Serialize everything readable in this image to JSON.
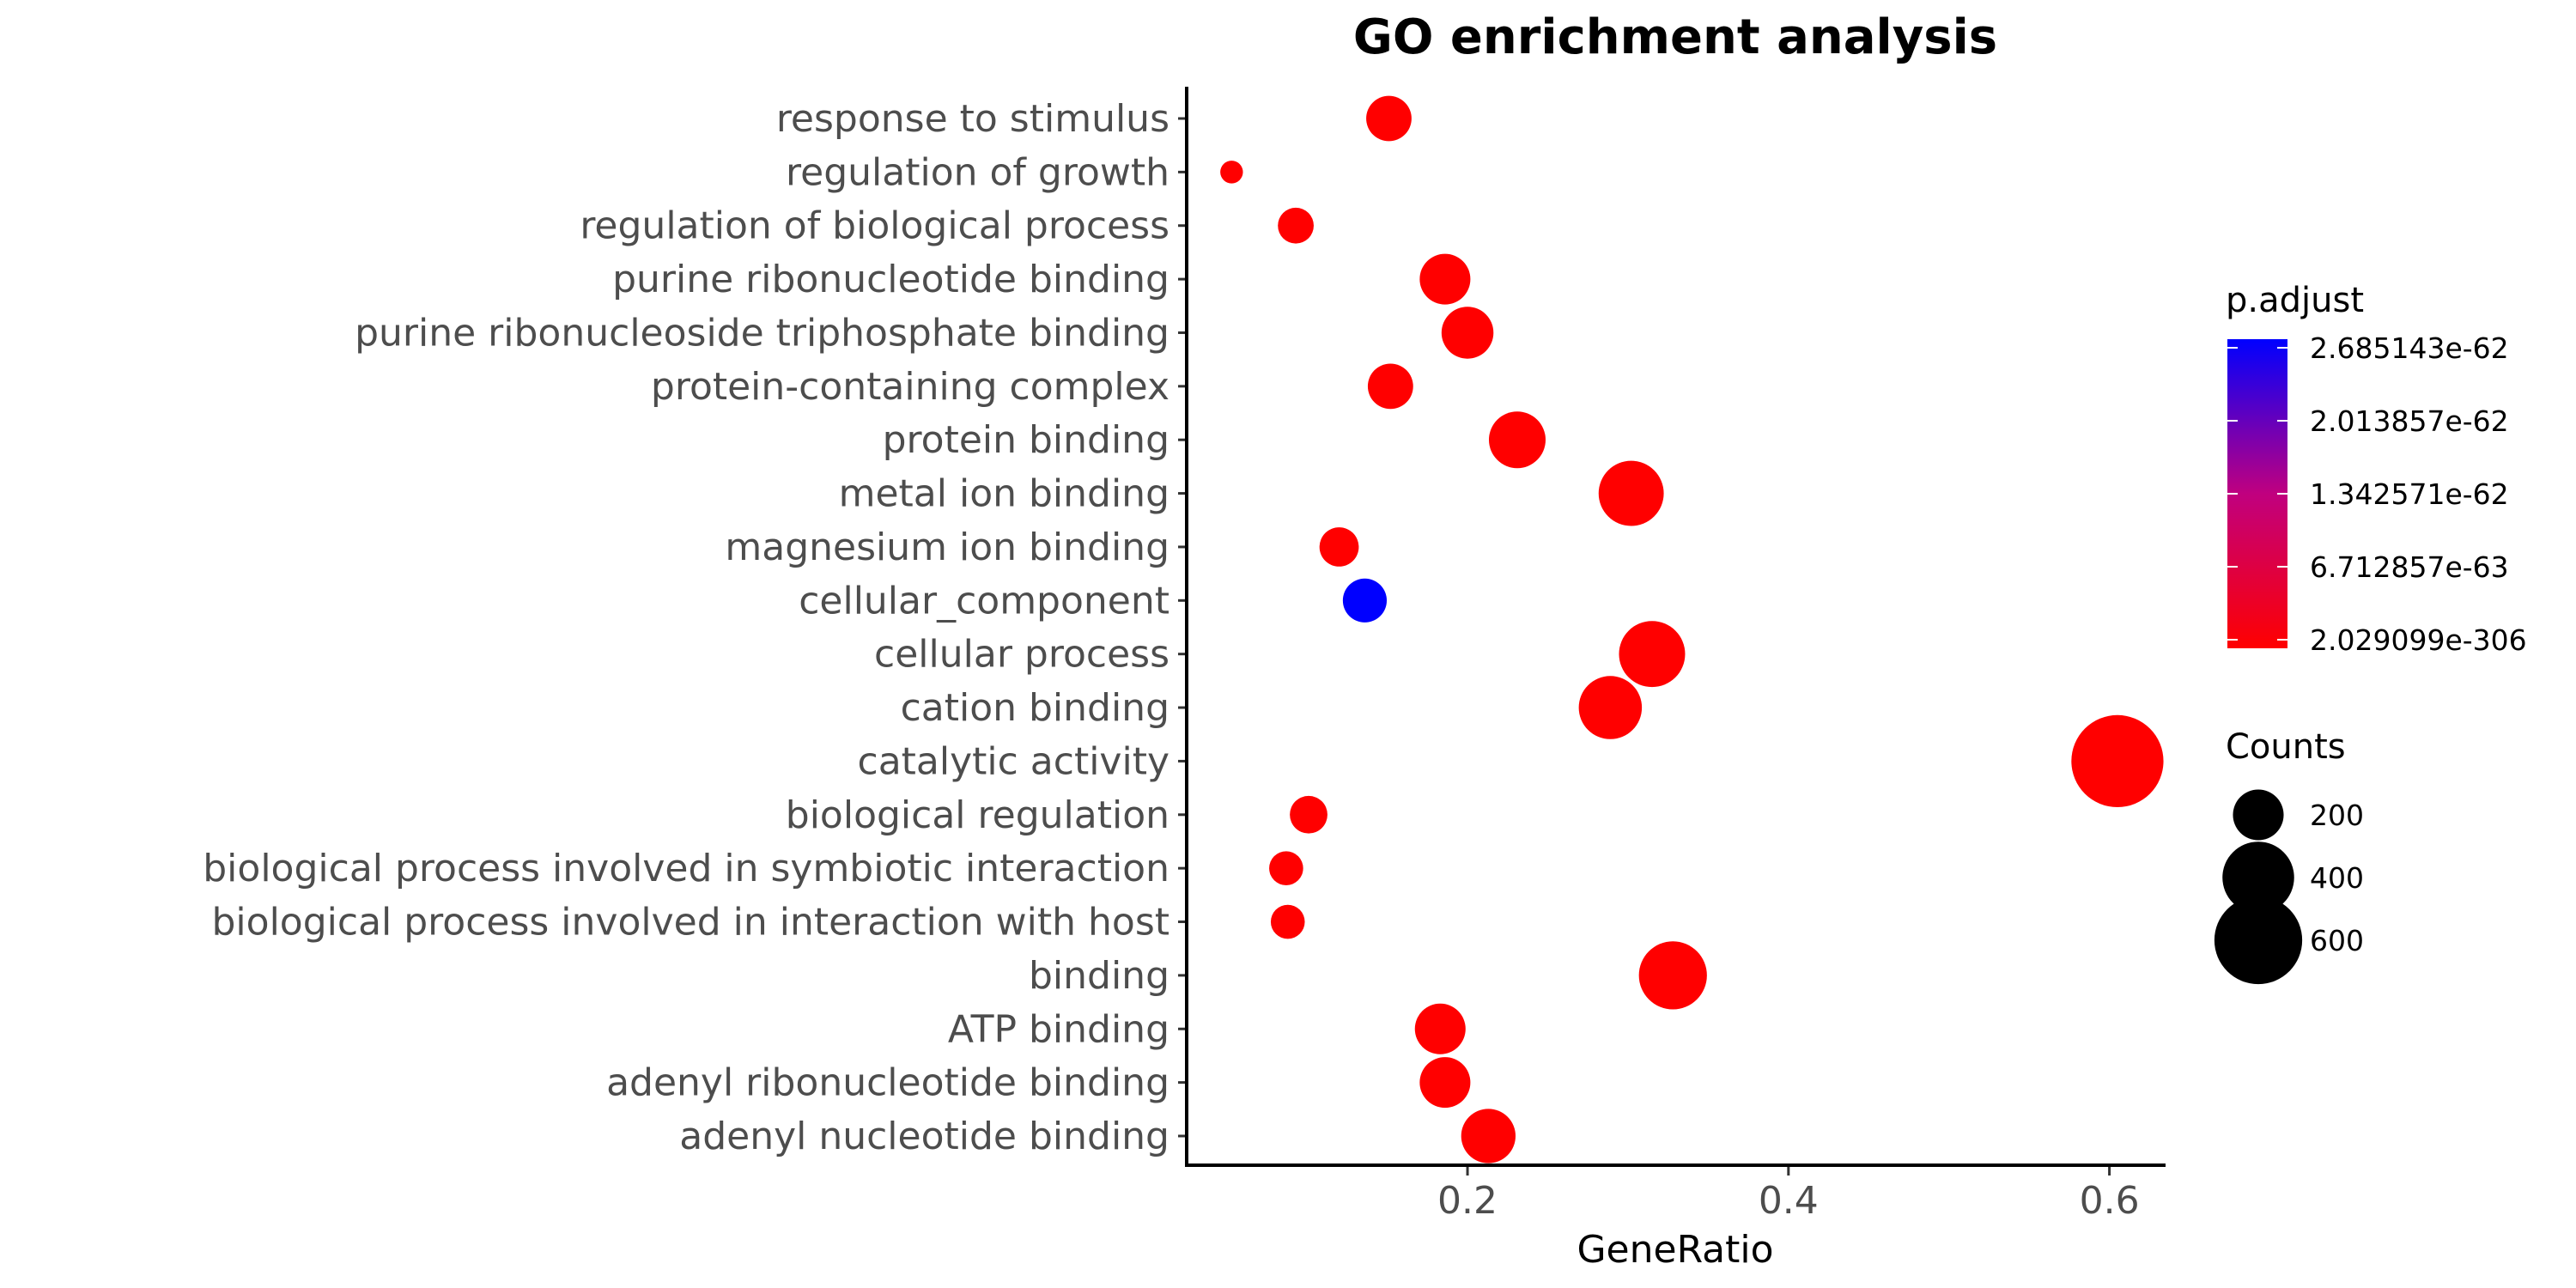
{
  "chart_data": {
    "type": "scatter",
    "title": "GO enrichment analysis",
    "xlabel": "GeneRatio",
    "ylabel": "",
    "xlim": [
      0.025,
      0.635
    ],
    "xticks": [
      0.2,
      0.4,
      0.6
    ],
    "xtick_labels": [
      "0.2",
      "0.4",
      "0.6"
    ],
    "categories": [
      "response to stimulus",
      "regulation of growth",
      "regulation of biological process",
      "purine ribonucleotide binding",
      "purine ribonucleoside triphosphate binding",
      "protein-containing complex",
      "protein binding",
      "metal ion binding",
      "magnesium ion binding",
      "cellular_component",
      "cellular process",
      "cation binding",
      "catalytic activity",
      "biological regulation",
      "biological process involved in symbiotic interaction",
      "biological process involved in interaction with host",
      "binding",
      "ATP binding",
      "adenyl ribonucleotide binding",
      "adenyl nucleotide binding"
    ],
    "series": [
      {
        "points": [
          {
            "category": "response to stimulus",
            "x": 0.151,
            "count": 160,
            "p_adjust": 2.029099e-306
          },
          {
            "category": "regulation of growth",
            "x": 0.053,
            "count": 40,
            "p_adjust": 2.029099e-306
          },
          {
            "category": "regulation of biological process",
            "x": 0.093,
            "count": 100,
            "p_adjust": 2.029099e-306
          },
          {
            "category": "purine ribonucleotide binding",
            "x": 0.186,
            "count": 200,
            "p_adjust": 2.029099e-306
          },
          {
            "category": "purine ribonucleoside triphosphate binding",
            "x": 0.2,
            "count": 210,
            "p_adjust": 2.029099e-306
          },
          {
            "category": "protein-containing complex",
            "x": 0.152,
            "count": 160,
            "p_adjust": 2.029099e-306
          },
          {
            "category": "protein binding",
            "x": 0.231,
            "count": 250,
            "p_adjust": 2.029099e-306
          },
          {
            "category": "metal ion binding",
            "x": 0.302,
            "count": 330,
            "p_adjust": 2.029099e-306
          },
          {
            "category": "magnesium ion binding",
            "x": 0.12,
            "count": 120,
            "p_adjust": 2.029099e-306
          },
          {
            "category": "cellular_component",
            "x": 0.136,
            "count": 150,
            "p_adjust": 2.685143e-62
          },
          {
            "category": "cellular process",
            "x": 0.315,
            "count": 340,
            "p_adjust": 2.029099e-306
          },
          {
            "category": "cation binding",
            "x": 0.289,
            "count": 310,
            "p_adjust": 2.029099e-306
          },
          {
            "category": "catalytic activity",
            "x": 0.605,
            "count": 660,
            "p_adjust": 2.029099e-306
          },
          {
            "category": "biological regulation",
            "x": 0.101,
            "count": 110,
            "p_adjust": 2.029099e-306
          },
          {
            "category": "biological process involved in symbiotic interaction",
            "x": 0.087,
            "count": 90,
            "p_adjust": 2.029099e-306
          },
          {
            "category": "biological process involved in interaction with host",
            "x": 0.088,
            "count": 90,
            "p_adjust": 2.029099e-306
          },
          {
            "category": "binding",
            "x": 0.328,
            "count": 360,
            "p_adjust": 2.029099e-306
          },
          {
            "category": "ATP binding",
            "x": 0.183,
            "count": 200,
            "p_adjust": 2.029099e-306
          },
          {
            "category": "adenyl ribonucleotide binding",
            "x": 0.186,
            "count": 200,
            "p_adjust": 2.029099e-306
          },
          {
            "category": "adenyl nucleotide binding",
            "x": 0.213,
            "count": 230,
            "p_adjust": 2.029099e-306
          }
        ]
      }
    ],
    "color_legend": {
      "title": "p.adjust",
      "low_color": "#ff0000",
      "high_color": "#0000ff",
      "min": 2.029099e-306,
      "max": 2.685143e-62,
      "labels": [
        "2.685143e-62",
        "2.013857e-62",
        "1.342571e-62",
        "6.712857e-63",
        "2.029099e-306"
      ]
    },
    "size_legend": {
      "title": "Counts",
      "values": [
        200,
        400,
        600
      ],
      "labels": [
        "200",
        "400",
        "600"
      ]
    },
    "grid": false,
    "legend_position": "right"
  }
}
